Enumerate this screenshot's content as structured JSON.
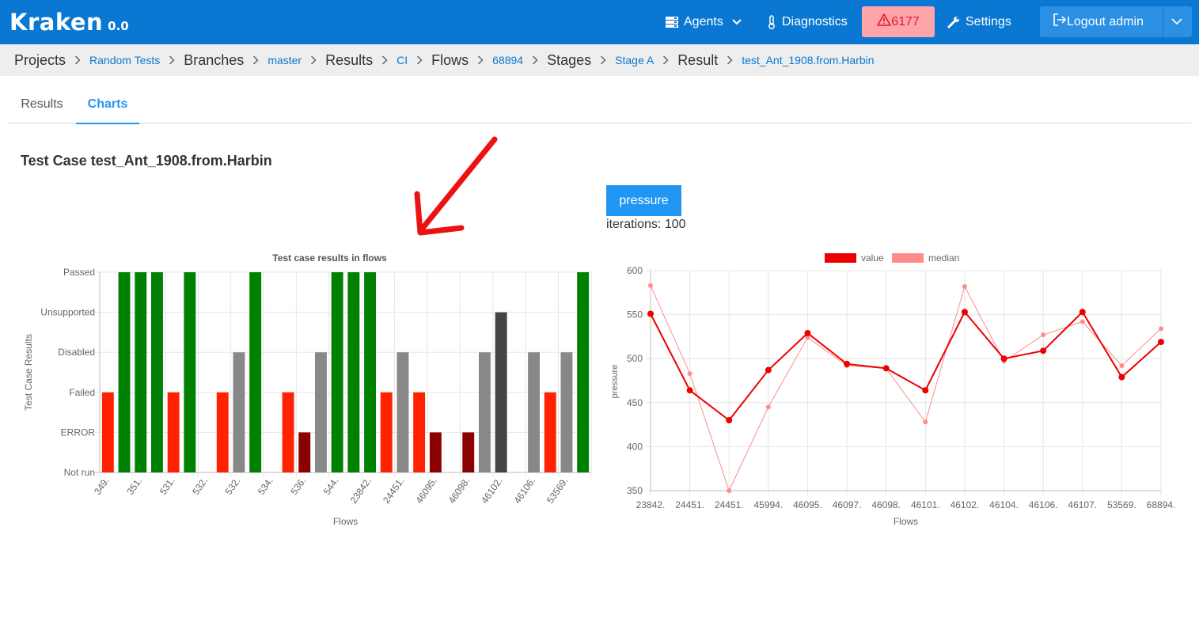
{
  "navbar": {
    "logo": "Kraken",
    "version": "0.0",
    "agents_label": "Agents",
    "diagnostics_label": "Diagnostics",
    "alert_count": "6177",
    "settings_label": "Settings",
    "logout_label": "Logout admin"
  },
  "breadcrumb": [
    {
      "label": "Projects",
      "kind": "heading"
    },
    {
      "label": "Random Tests",
      "kind": "link"
    },
    {
      "label": "Branches",
      "kind": "heading"
    },
    {
      "label": "master",
      "kind": "link"
    },
    {
      "label": "Results",
      "kind": "heading"
    },
    {
      "label": "CI",
      "kind": "link"
    },
    {
      "label": "Flows",
      "kind": "heading"
    },
    {
      "label": "68894",
      "kind": "link"
    },
    {
      "label": "Stages",
      "kind": "heading"
    },
    {
      "label": "Stage A",
      "kind": "link"
    },
    {
      "label": "Result",
      "kind": "heading"
    },
    {
      "label": "test_Ant_1908.from.Harbin",
      "kind": "link"
    }
  ],
  "tabs": {
    "results": "Results",
    "charts": "Charts"
  },
  "page_title": "Test Case test_Ant_1908.from.Harbin",
  "pressure_button": "pressure",
  "iterations_text": "iterations: 100",
  "colors": {
    "passed": "#008000",
    "failed": "#ff2200",
    "disabled": "#888888",
    "error": "#8b0000",
    "unsupported": "#444444",
    "value_line": "#ee0000",
    "median_line": "#ff8c8c"
  },
  "chart_data": [
    {
      "type": "bar",
      "title": "Test case results in flows",
      "xlabel": "Flows",
      "ylabel": "Test Case Results",
      "y_categories": [
        "Not run",
        "ERROR",
        "Failed",
        "Disabled",
        "Unsupported",
        "Passed"
      ],
      "x_tick_labels": [
        "349.",
        "351.",
        "531.",
        "532.",
        "532.",
        "534.",
        "536.",
        "544.",
        "23842.",
        "24451.",
        "46095.",
        "46098.",
        "46102.",
        "46106.",
        "53569."
      ],
      "results": [
        "Failed",
        "Passed",
        "Passed",
        "Passed",
        "Failed",
        "Passed",
        "Not run",
        "Failed",
        "Disabled",
        "Passed",
        "Not run",
        "Failed",
        "ERROR",
        "Disabled",
        "Passed",
        "Passed",
        "Passed",
        "Failed",
        "Disabled",
        "Failed",
        "ERROR",
        "Not run",
        "ERROR",
        "Disabled",
        "Unsupported",
        "Not run",
        "Disabled",
        "Failed",
        "Disabled",
        "Passed"
      ],
      "grid": true
    },
    {
      "type": "line",
      "xlabel": "Flows",
      "ylabel": "pressure",
      "ylim": [
        350,
        600
      ],
      "y_ticks": [
        350,
        400,
        450,
        500,
        550,
        600
      ],
      "categories": [
        "23842.",
        "24451.",
        "24451.",
        "45994.",
        "46095.",
        "46097.",
        "46098.",
        "46101.",
        "46102.",
        "46104.",
        "46106.",
        "46107.",
        "53569.",
        "68894."
      ],
      "series": [
        {
          "name": "value",
          "values": [
            551,
            464,
            430,
            487,
            529,
            494,
            489,
            464,
            553,
            500,
            509,
            553,
            479,
            519
          ]
        },
        {
          "name": "median",
          "values": [
            583,
            483,
            350,
            445,
            524,
            492,
            489,
            428,
            582,
            497,
            527,
            542,
            492,
            534
          ]
        }
      ],
      "legend": "top",
      "grid": true
    }
  ]
}
